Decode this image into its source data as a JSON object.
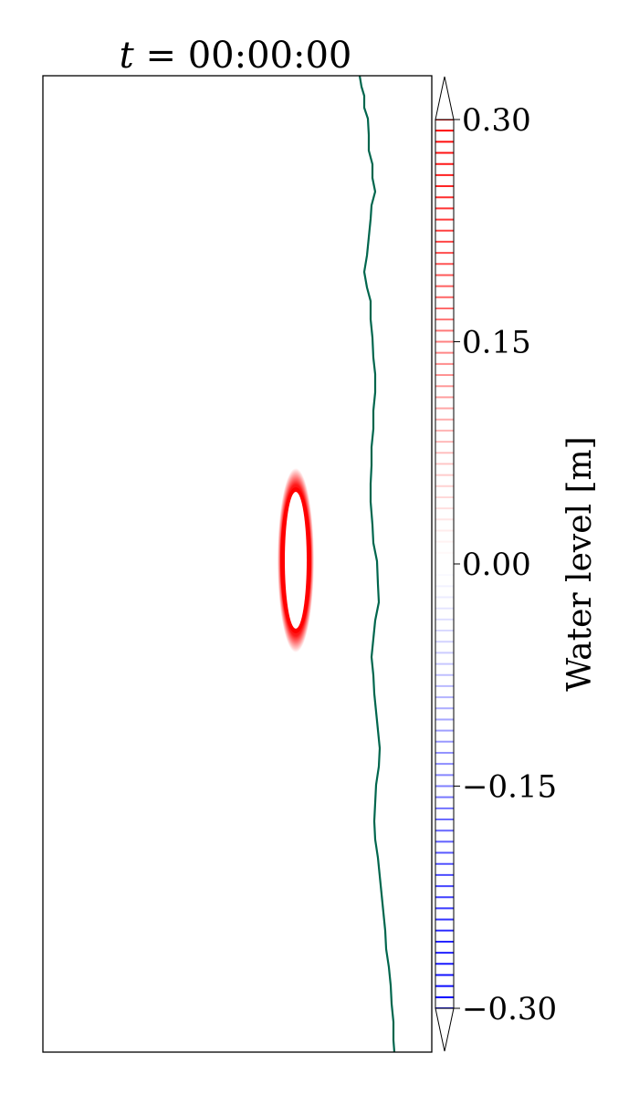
{
  "chart_data": {
    "type": "heatmap",
    "title": {
      "var": "t",
      "eq": " = ",
      "time": "00:00:00"
    },
    "colorbar": {
      "label_text": "Water level ",
      "label_unit": "[m]",
      "unit_var": "m",
      "min": -0.3,
      "max": 0.3,
      "ticks": [
        {
          "value": 0.3,
          "label": "0.30"
        },
        {
          "value": 0.15,
          "label": "0.15"
        },
        {
          "value": 0.0,
          "label": "0.00"
        },
        {
          "value": -0.15,
          "label": "−0.15"
        },
        {
          "value": -0.3,
          "label": "−0.30"
        }
      ],
      "extend": "both",
      "cmap_low": "#0000ff",
      "cmap_mid": "#ffffff",
      "cmap_high": "#ff0000",
      "levels": 80
    },
    "water_level_ring": {
      "value": 0.3,
      "color": "#ff0000"
    },
    "shoreline": {
      "color": "#00664d"
    },
    "grid": false,
    "frame_color": "#000000"
  }
}
